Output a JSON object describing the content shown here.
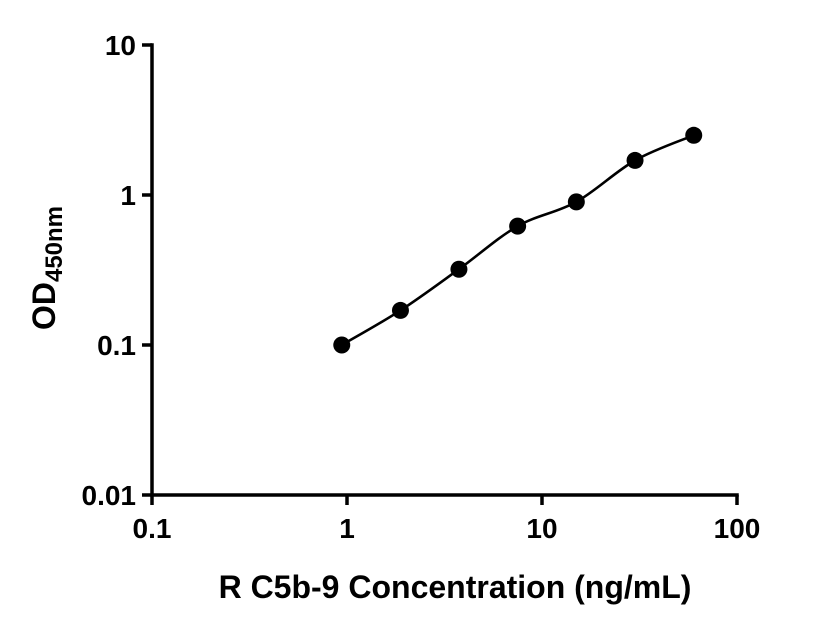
{
  "chart_data": {
    "type": "scatter",
    "x": [
      0.94,
      1.88,
      3.75,
      7.5,
      15,
      30,
      60
    ],
    "y": [
      0.1,
      0.17,
      0.32,
      0.62,
      0.9,
      1.7,
      2.5
    ],
    "title": "",
    "xlabel": "R C5b-9 Concentration (ng/mL)",
    "ylabel_main": "OD",
    "ylabel_sub": "450nm",
    "xscale": "log",
    "yscale": "log",
    "xlim": [
      0.1,
      100
    ],
    "ylim": [
      0.01,
      10
    ],
    "xticks": [
      "0.1",
      "1",
      "10",
      "100"
    ],
    "yticks": [
      "10",
      "1",
      "0.1",
      "0.01"
    ],
    "grid": "off",
    "legend": "none",
    "line_color": "#000000",
    "marker_color": "#000000",
    "marker_shape": "filled-circle",
    "background_color": "#ffffff"
  }
}
